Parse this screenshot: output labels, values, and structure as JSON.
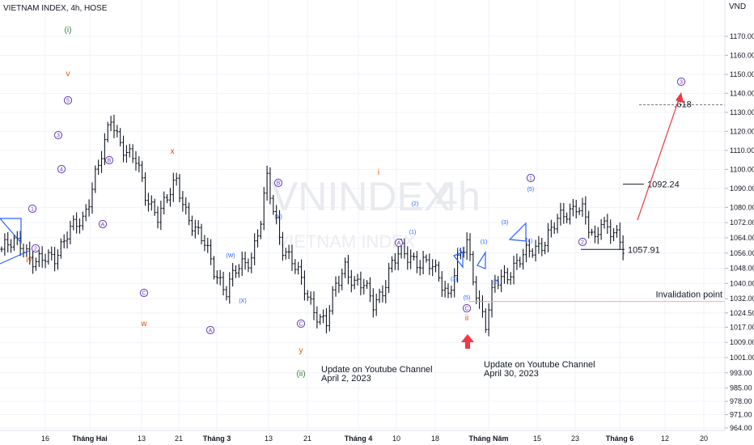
{
  "header": {
    "symbol": "VIETNAM INDEX, 4h, HOSE",
    "currency": "VND"
  },
  "watermark": {
    "ticker": "VNINDEX",
    "interval": "4h",
    "name": "VIETNAM INDEX"
  },
  "colors": {
    "bar": "#131722",
    "grid": "#f0f3fa",
    "purple": "#673ab7",
    "blue": "#2962ff",
    "orange": "#e65100",
    "green": "#2e7d32",
    "red": "#f23645",
    "redLight": "#f8a5ac"
  },
  "chart_data": {
    "type": "ohlc",
    "title": "VIETNAM INDEX, 4h, HOSE",
    "ylabel": "VND",
    "ylim": [
      961,
      1188
    ],
    "yticks": [
      964,
      971,
      978,
      985,
      993,
      1001,
      1009,
      1017,
      1024.5,
      1032,
      1040,
      1048,
      1056,
      1064,
      1072,
      1080,
      1090,
      1100,
      1110,
      1120,
      1130,
      1140,
      1150,
      1160,
      1170
    ],
    "xticks": [
      {
        "label": "16",
        "bold": false
      },
      {
        "label": "Tháng Hai",
        "bold": true
      },
      {
        "label": "13",
        "bold": false
      },
      {
        "label": "21",
        "bold": false
      },
      {
        "label": "Tháng 3",
        "bold": true
      },
      {
        "label": "13",
        "bold": false
      },
      {
        "label": "21",
        "bold": false
      },
      {
        "label": "Tháng 4",
        "bold": true
      },
      {
        "label": "10",
        "bold": false
      },
      {
        "label": "18",
        "bold": false
      },
      {
        "label": "Tháng Năm",
        "bold": true
      },
      {
        "label": "15",
        "bold": false
      },
      {
        "label": "23",
        "bold": false
      },
      {
        "label": "Tháng 6",
        "bold": true
      },
      {
        "label": "12",
        "bold": false
      },
      {
        "label": "20",
        "bold": false
      }
    ],
    "bars": 200,
    "path": [
      [
        0,
        1058
      ],
      [
        6,
        1062
      ],
      [
        11,
        1050
      ],
      [
        17,
        1055
      ],
      [
        21,
        1066
      ],
      [
        26,
        1073
      ],
      [
        30,
        1098
      ],
      [
        33,
        1112
      ],
      [
        35,
        1126
      ],
      [
        37,
        1118
      ],
      [
        40,
        1110
      ],
      [
        43,
        1104
      ],
      [
        46,
        1086
      ],
      [
        50,
        1077
      ],
      [
        53,
        1084
      ],
      [
        56,
        1093
      ],
      [
        59,
        1079
      ],
      [
        62,
        1068
      ],
      [
        65,
        1060
      ],
      [
        68,
        1048
      ],
      [
        72,
        1036
      ],
      [
        75,
        1046
      ],
      [
        80,
        1055
      ],
      [
        83,
        1073
      ],
      [
        85,
        1094
      ],
      [
        87,
        1078
      ],
      [
        90,
        1060
      ],
      [
        93,
        1052
      ],
      [
        96,
        1040
      ],
      [
        99,
        1030
      ],
      [
        102,
        1022
      ],
      [
        104,
        1019
      ],
      [
        107,
        1038
      ],
      [
        110,
        1050
      ],
      [
        113,
        1040
      ],
      [
        116,
        1038
      ],
      [
        119,
        1030
      ],
      [
        122,
        1037
      ],
      [
        125,
        1049
      ],
      [
        128,
        1057
      ],
      [
        131,
        1055
      ],
      [
        134,
        1050
      ],
      [
        137,
        1049
      ],
      [
        140,
        1045
      ],
      [
        143,
        1034
      ],
      [
        146,
        1050
      ],
      [
        149,
        1062
      ],
      [
        151,
        1044
      ],
      [
        153,
        1030
      ],
      [
        155,
        1018
      ],
      [
        158,
        1040
      ],
      [
        162,
        1046
      ],
      [
        166,
        1052
      ],
      [
        170,
        1058
      ],
      [
        174,
        1063
      ],
      [
        177,
        1070
      ],
      [
        180,
        1076
      ],
      [
        182,
        1079
      ],
      [
        184,
        1082
      ],
      [
        186,
        1078
      ],
      [
        188,
        1068
      ],
      [
        190,
        1061
      ],
      [
        192,
        1075
      ],
      [
        194,
        1070
      ],
      [
        196,
        1067
      ],
      [
        198,
        1060
      ],
      [
        200,
        1054
      ]
    ],
    "levels": [
      {
        "label": "1092.24",
        "value": 1092.24
      },
      {
        "label": "1057.91",
        "value": 1057.91
      },
      {
        "label": "Invalidation point",
        "value": 1030.5
      },
      {
        "label": ".618",
        "value": 1134
      }
    ],
    "annotations": {
      "waves_purple": [
        "1",
        "2",
        "3",
        "4",
        "5",
        "B",
        "A",
        "C",
        "B",
        "A",
        "C",
        "A",
        "C",
        "1",
        "2",
        "3"
      ],
      "waves_blue": [
        "(W)",
        "(X)",
        "(Y)",
        "(2)",
        "(1)",
        "(3)",
        "(4)",
        "(5)",
        "(1)",
        "(2)",
        "(3)",
        "(4)",
        "(5)"
      ],
      "waves_orange": [
        "iv",
        "v",
        "x",
        "w",
        "y",
        "i",
        "ii"
      ],
      "waves_green": [
        "(i)",
        "(ii)"
      ]
    },
    "notes": [
      {
        "line1": "Update on Youtube Channel",
        "line2": "April 2, 2023"
      },
      {
        "line1": "Update on Youtube Channel",
        "line2": "April 30, 2023"
      }
    ]
  }
}
